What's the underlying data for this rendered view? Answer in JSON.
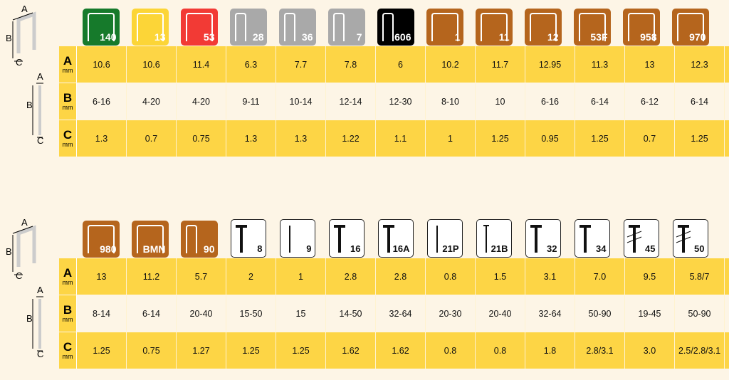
{
  "colors": {
    "row_highlight": "#fdd545",
    "background": "#fdf5e6",
    "brown": "#b5651d",
    "green": "#167a2b",
    "yellow": "#fcd537",
    "red": "#f23a35",
    "grey": "#a9a9a9",
    "black": "#000000"
  },
  "dims": {
    "a": "A",
    "b": "B",
    "c": "C",
    "unit": "mm"
  },
  "tables": [
    {
      "items": [
        {
          "label": "140",
          "kind": "staple",
          "color": "#167a2b"
        },
        {
          "label": "13",
          "kind": "staple",
          "color": "#fcd537"
        },
        {
          "label": "53",
          "kind": "staple",
          "color": "#f23a35"
        },
        {
          "label": "28",
          "kind": "narrow",
          "color": "#a9a9a9"
        },
        {
          "label": "36",
          "kind": "narrow",
          "color": "#a9a9a9"
        },
        {
          "label": "7",
          "kind": "narrow",
          "color": "#a9a9a9"
        },
        {
          "label": "606",
          "kind": "narrow",
          "color": "#000000"
        },
        {
          "label": "1",
          "kind": "staple",
          "color": "#b5651d"
        },
        {
          "label": "11",
          "kind": "staple",
          "color": "#b5651d"
        },
        {
          "label": "12",
          "kind": "staple",
          "color": "#b5651d"
        },
        {
          "label": "53F",
          "kind": "staple",
          "color": "#b5651d"
        },
        {
          "label": "958",
          "kind": "staple",
          "color": "#b5651d"
        },
        {
          "label": "970",
          "kind": "staple",
          "color": "#b5651d"
        }
      ],
      "A": [
        "10.6",
        "10.6",
        "11.4",
        "6.3",
        "7.7",
        "7.8",
        "6",
        "10.2",
        "11.7",
        "12.95",
        "11.3",
        "13",
        "12.3"
      ],
      "B": [
        "6-16",
        "4-20",
        "4-20",
        "9-11",
        "10-14",
        "12-14",
        "12-30",
        "8-10",
        "10",
        "6-16",
        "6-14",
        "6-12",
        "6-14"
      ],
      "C": [
        "1.3",
        "0.7",
        "0.75",
        "1.3",
        "1.3",
        "1.22",
        "1.1",
        "1",
        "1.25",
        "0.95",
        "1.25",
        "0.7",
        "1.25"
      ]
    },
    {
      "items": [
        {
          "label": "980",
          "kind": "staple",
          "color": "#b5651d"
        },
        {
          "label": "BMN",
          "kind": "staple",
          "color": "#b5651d"
        },
        {
          "label": "90",
          "kind": "narrow",
          "color": "#b5651d"
        },
        {
          "label": "8",
          "kind": "nail-t"
        },
        {
          "label": "9",
          "kind": "pin"
        },
        {
          "label": "16",
          "kind": "nail-t"
        },
        {
          "label": "16A",
          "kind": "nail-t"
        },
        {
          "label": "21P",
          "kind": "pin"
        },
        {
          "label": "21B",
          "kind": "brad"
        },
        {
          "label": "32",
          "kind": "nail-t"
        },
        {
          "label": "34",
          "kind": "nail-t"
        },
        {
          "label": "45",
          "kind": "nail-ring"
        },
        {
          "label": "50",
          "kind": "nail-ring"
        }
      ],
      "A": [
        "13",
        "11.2",
        "5.7",
        "2",
        "1",
        "2.8",
        "2.8",
        "0.8",
        "1.5",
        "3.1",
        "7.0",
        "9.5",
        "5.8/7"
      ],
      "B": [
        "8-14",
        "6-14",
        "20-40",
        "15-50",
        "15",
        "14-50",
        "32-64",
        "20-30",
        "20-40",
        "32-64",
        "50-90",
        "19-45",
        "50-90"
      ],
      "C": [
        "1.25",
        "0.75",
        "1.27",
        "1.25",
        "1.25",
        "1.62",
        "1.62",
        "0.8",
        "0.8",
        "1.8",
        "2.8/3.1",
        "3.0",
        "2.5/2.8/3.1"
      ]
    }
  ]
}
